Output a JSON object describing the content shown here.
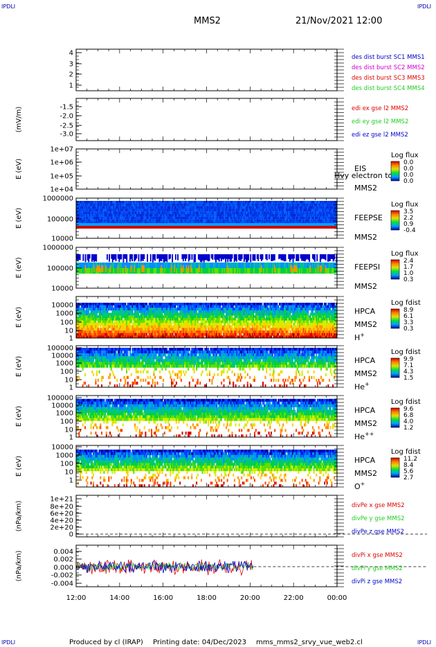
{
  "corner_labels": [
    "IPDLI",
    "IPDLI",
    "IPDLI",
    "IPDLI"
  ],
  "header": {
    "spacecraft": "MMS2",
    "datetime": "21/Nov/2021 12:00"
  },
  "footer": {
    "produced_by": "Produced by cl (IRAP)",
    "printing_date": "Printing date: 04/Dec/2023",
    "file": "mms_mms2_srvy_vue_web2.cl"
  },
  "colors": {
    "red": "#e00000",
    "green": "#22cc22",
    "blue": "#0000cc",
    "magenta": "#cc00cc",
    "dark": "#000000"
  },
  "chart_data": {
    "type": "heatmap",
    "x_ticks": [
      "12:00",
      "14:00",
      "16:00",
      "18:00",
      "20:00",
      "22:00",
      "00:00"
    ],
    "x_range": [
      "2021-11-21T12:00",
      "2021-11-22T00:00"
    ],
    "panels": [
      {
        "id": "p1",
        "ylabel": "",
        "yticks": [
          "4",
          "3",
          "2",
          "1"
        ],
        "legend": [
          {
            "text": "des dist burst SC1 MMS1",
            "color": "#0000cc"
          },
          {
            "text": "des dist burst SC2 MMS2",
            "color": "#cc00cc"
          },
          {
            "text": "des dist burst SC3 MMS3",
            "color": "#e00000"
          },
          {
            "text": "des dist burst SC4 MMS4",
            "color": "#22cc22"
          }
        ]
      },
      {
        "id": "p2",
        "ylabel": "(mV/m)",
        "yticks": [
          "-1.5",
          "-2.0",
          "-2.5",
          "-3.0"
        ],
        "legend": [
          {
            "text": "edi ex gse l2 MMS2",
            "color": "#e00000"
          },
          {
            "text": "edi ey gse l2 MMS2",
            "color": "#22cc22"
          },
          {
            "text": "edi ez gse l2 MMS2",
            "color": "#0000cc"
          }
        ]
      },
      {
        "id": "p3",
        "ylabel": "E (eV)",
        "yticks": [
          "1e+07",
          "1e+06",
          "1e+05",
          "1e+04"
        ],
        "labels": [
          "EIS",
          "MMS2"
        ],
        "overlap": "Hvy electron to",
        "colorbar": {
          "title": "Log flux",
          "ticks": [
            "0.0",
            "0.0",
            "0.0",
            "0.0"
          ]
        }
      },
      {
        "id": "p4",
        "ylabel": "E (eV)",
        "yticks": [
          "1000000",
          "100000",
          "10000"
        ],
        "labels": [
          "FEEPSE",
          "MMS2"
        ],
        "colorbar": {
          "title": "Log flux",
          "ticks": [
            "3.5",
            "2.2",
            "0.9",
            "-0.4"
          ]
        }
      },
      {
        "id": "p5",
        "ylabel": "E (eV)",
        "yticks": [
          "1000000",
          "100000",
          "10000"
        ],
        "labels": [
          "FEEPSI",
          "MMS2"
        ],
        "colorbar": {
          "title": "Log flux",
          "ticks": [
            "2.4",
            "1.7",
            "1.0",
            "0.3"
          ]
        }
      },
      {
        "id": "p6",
        "ylabel": "E (eV)",
        "yticks": [
          "10000",
          "1000",
          "100",
          "10",
          "1"
        ],
        "labels": [
          "HPCA",
          "MMS2",
          "H+"
        ],
        "colorbar": {
          "title": "Log fdist",
          "ticks": [
            "8.9",
            "6.1",
            "3.3",
            "0.3"
          ]
        }
      },
      {
        "id": "p7",
        "ylabel": "E (eV)",
        "yticks": [
          "100000",
          "10000",
          "1000",
          "100",
          "10",
          "1"
        ],
        "labels": [
          "HPCA",
          "MMS2",
          "He+"
        ],
        "colorbar": {
          "title": "Log fdist",
          "ticks": [
            "9.9",
            "7.1",
            "4.3",
            "1.5"
          ]
        }
      },
      {
        "id": "p8",
        "ylabel": "E (eV)",
        "yticks": [
          "100000",
          "10000",
          "1000",
          "100",
          "10",
          "1"
        ],
        "labels": [
          "HPCA",
          "MMS2",
          "He++"
        ],
        "colorbar": {
          "title": "Log fdist",
          "ticks": [
            "9.6",
            "6.8",
            "4.0",
            "1.2"
          ]
        }
      },
      {
        "id": "p9",
        "ylabel": "E (eV)",
        "yticks": [
          "10000",
          "1000",
          "100",
          "10",
          "1"
        ],
        "labels": [
          "HPCA",
          "MMS2",
          "O+"
        ],
        "colorbar": {
          "title": "Log fdist",
          "ticks": [
            "11.2",
            "8.4",
            "5.6",
            "2.7"
          ]
        }
      },
      {
        "id": "p10",
        "ylabel": "(nPa/km)",
        "yticks": [
          "1e+21",
          "8e+20",
          "6e+20",
          "4e+20",
          "2e+20",
          "0"
        ],
        "legend": [
          {
            "text": "divPe x gse MMS2",
            "color": "#e00000"
          },
          {
            "text": "divPe y gse MMS2",
            "color": "#22cc22"
          },
          {
            "text": "divPe z gse MMS2",
            "color": "#0000cc"
          }
        ]
      },
      {
        "id": "p11",
        "ylabel": "(nPa/km)",
        "yticks": [
          "0.004",
          "0.002",
          "0.000",
          "-0.002",
          "-0.004"
        ],
        "legend": [
          {
            "text": "divPi x gse MMS2",
            "color": "#e00000"
          },
          {
            "text": "divPi y gse MMS2",
            "color": "#22cc22"
          },
          {
            "text": "divPi z gse MMS2",
            "color": "#0000cc"
          }
        ]
      }
    ]
  }
}
